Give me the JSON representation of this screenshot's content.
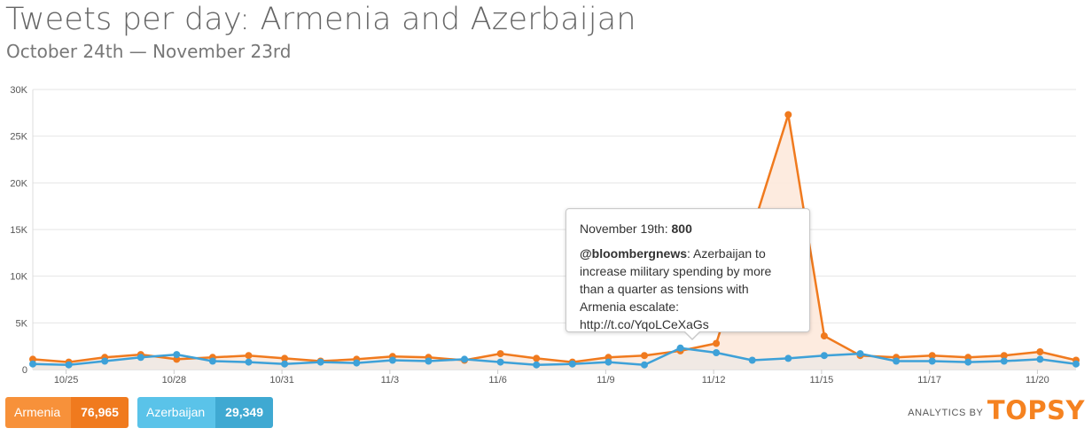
{
  "header": {
    "title": "Tweets per day: Armenia and Azerbaijan",
    "subtitle": "October 24th — November 23rd"
  },
  "chart_data": {
    "type": "line",
    "x_tick_labels": [
      "10/25",
      "10/28",
      "10/31",
      "11/3",
      "11/6",
      "11/9",
      "11/12",
      "11/15",
      "11/17",
      "11/20"
    ],
    "y_tick_labels": [
      "0",
      "5K",
      "10K",
      "15K",
      "20K",
      "25K",
      "30K"
    ],
    "ylim": [
      0,
      30000
    ],
    "grid": true,
    "series": [
      {
        "name": "Armenia",
        "color": "#f07a1e",
        "fill": "#fde9dc",
        "values": [
          1100,
          800,
          1300,
          1600,
          1100,
          1300,
          1500,
          1200,
          900,
          1100,
          1400,
          1300,
          1000,
          1700,
          1200,
          800,
          1300,
          1500,
          2000,
          2800,
          15000,
          27300,
          3600,
          1500,
          1300,
          1500,
          1300,
          1500,
          1900,
          1000
        ]
      },
      {
        "name": "Azerbaijan",
        "color": "#3ea1d8",
        "fill": "#e7e7e7",
        "values": [
          600,
          500,
          900,
          1300,
          1600,
          900,
          800,
          600,
          800,
          700,
          1000,
          900,
          1100,
          800,
          500,
          600,
          800,
          500,
          2300,
          1800,
          1000,
          1200,
          1500,
          1700,
          900,
          900,
          800,
          900,
          1100,
          600
        ]
      }
    ]
  },
  "tooltip": {
    "date_label": "November 19th: ",
    "value": "800",
    "handle": "@bloombergnews",
    "text": ": Azerbaijan to increase military spending by more than a quarter as tensions with Armenia escalate: http://t.co/YqoLCeXaGs"
  },
  "legend": [
    {
      "name": "Armenia",
      "total": "76,965"
    },
    {
      "name": "Azerbaijan",
      "total": "29,349"
    }
  ],
  "branding": {
    "prefix": "ANALYTICS BY",
    "name": "TOPSY"
  }
}
